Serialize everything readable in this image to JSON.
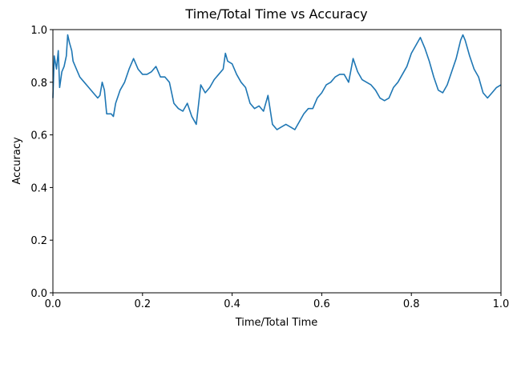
{
  "chart_data": {
    "type": "line",
    "title": "Time/Total Time vs Accuracy",
    "xlabel": "Time/Total Time",
    "ylabel": "Accuracy",
    "xlim": [
      0,
      1
    ],
    "ylim": [
      0,
      1
    ],
    "xticks": [
      {
        "value": 0,
        "label": "0.0"
      },
      0.2,
      0.4,
      0.6,
      0.8,
      {
        "value": 1,
        "label": "1.0"
      }
    ],
    "yticks": [
      {
        "value": 0,
        "label": "0.0"
      },
      0.2,
      0.4,
      0.6,
      0.8,
      {
        "value": 1,
        "label": "1.0"
      }
    ],
    "series": [
      {
        "color": "#1f77b4",
        "x": [
          0.0,
          0.003,
          0.008,
          0.012,
          0.015,
          0.02,
          0.025,
          0.03,
          0.033,
          0.037,
          0.042,
          0.045,
          0.05,
          0.055,
          0.06,
          0.07,
          0.08,
          0.09,
          0.1,
          0.105,
          0.11,
          0.115,
          0.12,
          0.13,
          0.135,
          0.14,
          0.15,
          0.16,
          0.17,
          0.18,
          0.19,
          0.2,
          0.21,
          0.22,
          0.23,
          0.24,
          0.25,
          0.26,
          0.27,
          0.28,
          0.29,
          0.3,
          0.31,
          0.32,
          0.33,
          0.34,
          0.35,
          0.36,
          0.37,
          0.38,
          0.385,
          0.39,
          0.4,
          0.41,
          0.42,
          0.43,
          0.44,
          0.45,
          0.46,
          0.47,
          0.48,
          0.49,
          0.5,
          0.51,
          0.52,
          0.53,
          0.54,
          0.55,
          0.56,
          0.57,
          0.58,
          0.59,
          0.6,
          0.61,
          0.62,
          0.63,
          0.64,
          0.65,
          0.66,
          0.67,
          0.68,
          0.69,
          0.7,
          0.71,
          0.72,
          0.73,
          0.74,
          0.75,
          0.76,
          0.77,
          0.78,
          0.79,
          0.8,
          0.81,
          0.82,
          0.83,
          0.84,
          0.85,
          0.86,
          0.87,
          0.88,
          0.89,
          0.9,
          0.91,
          0.915,
          0.92,
          0.93,
          0.94,
          0.95,
          0.96,
          0.97,
          0.98,
          0.99,
          1.0
        ],
        "values": [
          0.74,
          0.9,
          0.85,
          0.92,
          0.78,
          0.84,
          0.86,
          0.9,
          0.98,
          0.95,
          0.92,
          0.88,
          0.86,
          0.84,
          0.82,
          0.8,
          0.78,
          0.76,
          0.74,
          0.75,
          0.8,
          0.77,
          0.68,
          0.68,
          0.67,
          0.72,
          0.77,
          0.8,
          0.85,
          0.89,
          0.85,
          0.83,
          0.83,
          0.84,
          0.86,
          0.82,
          0.82,
          0.8,
          0.72,
          0.7,
          0.69,
          0.72,
          0.67,
          0.64,
          0.79,
          0.76,
          0.78,
          0.81,
          0.83,
          0.85,
          0.91,
          0.88,
          0.87,
          0.83,
          0.8,
          0.78,
          0.72,
          0.7,
          0.71,
          0.69,
          0.75,
          0.64,
          0.62,
          0.63,
          0.64,
          0.63,
          0.62,
          0.65,
          0.68,
          0.7,
          0.7,
          0.74,
          0.76,
          0.79,
          0.8,
          0.82,
          0.83,
          0.83,
          0.8,
          0.89,
          0.84,
          0.81,
          0.8,
          0.79,
          0.77,
          0.74,
          0.73,
          0.74,
          0.78,
          0.8,
          0.83,
          0.86,
          0.91,
          0.94,
          0.97,
          0.93,
          0.88,
          0.82,
          0.77,
          0.76,
          0.79,
          0.84,
          0.89,
          0.96,
          0.98,
          0.96,
          0.9,
          0.85,
          0.82,
          0.76,
          0.74,
          0.76,
          0.78,
          0.79
        ]
      }
    ]
  }
}
